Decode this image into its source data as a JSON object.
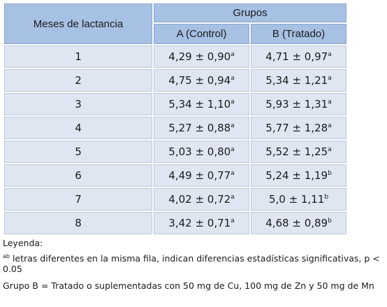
{
  "table": {
    "header_row_label": "Meses de lactancia",
    "group_header": "Grupos",
    "col_a": "A (Control)",
    "col_b": "B (Tratado)",
    "rows": [
      {
        "mes": "1",
        "a": "4,29 ± 0,90",
        "a_sup": "a",
        "b": "4,71 ± 0,97",
        "b_sup": "a"
      },
      {
        "mes": "2",
        "a": "4,75 ± 0,94",
        "a_sup": "a",
        "b": "5,34 ± 1,21",
        "b_sup": "a"
      },
      {
        "mes": "3",
        "a": "5,34 ± 1,10",
        "a_sup": "a",
        "b": "5,93 ± 1,31",
        "b_sup": "a"
      },
      {
        "mes": "4",
        "a": "5,27 ± 0,88",
        "a_sup": "a",
        "b": "5,77 ± 1,28",
        "b_sup": "a"
      },
      {
        "mes": "5",
        "a": "5,03 ± 0,80",
        "a_sup": "a",
        "b": "5,52 ± 1,25",
        "b_sup": "a"
      },
      {
        "mes": "6",
        "a": "4,49 ± 0,77",
        "a_sup": "a",
        "b": "5,24 ± 1,19",
        "b_sup": "b"
      },
      {
        "mes": "7",
        "a": "4,02 ± 0,72",
        "a_sup": "a",
        "b": "5,0 ± 1,11",
        "b_sup": "b"
      },
      {
        "mes": "8",
        "a": "3,42 ± 0,71",
        "a_sup": "a",
        "b": "4,68 ± 0,89",
        "b_sup": "b"
      }
    ]
  },
  "legend": {
    "title": "Leyenda:",
    "note_sup": "ab",
    "note_text": " letras diferentes en la misma fila, indican diferencias estadísticas significativas, p < 0.05",
    "group_b_text": "Grupo B = Tratado o suplementadas con 50 mg de Cu, 100 mg de Zn y 50 mg de Mn"
  },
  "colors": {
    "header_bg": "#a7c1e4",
    "cell_bg": "#dfe6f2"
  }
}
